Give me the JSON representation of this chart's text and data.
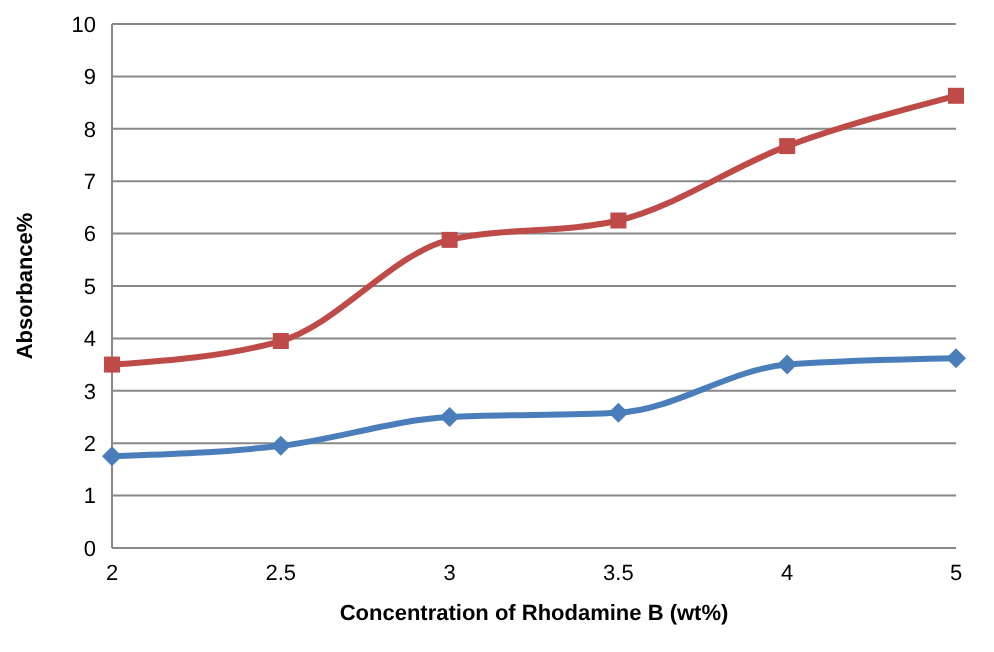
{
  "chart_data": {
    "type": "line",
    "xlabel": "Concentration of Rhodamine B (wt%)",
    "ylabel": "Absorbance%",
    "categories": [
      "2",
      "2.5",
      "3",
      "3.5",
      "4",
      "5"
    ],
    "series": [
      {
        "color": "#4a7ebb",
        "marker": "diamond",
        "values": [
          1.75,
          1.95,
          2.5,
          2.58,
          3.5,
          3.62
        ]
      },
      {
        "color": "#be4b48",
        "marker": "square",
        "values": [
          3.5,
          3.95,
          5.88,
          6.25,
          7.67,
          8.63
        ]
      }
    ],
    "ylim": [
      0,
      10
    ],
    "yticks": [
      0,
      1,
      2,
      3,
      4,
      5,
      6,
      7,
      8,
      9,
      10
    ],
    "grid": "y",
    "legend": false
  }
}
